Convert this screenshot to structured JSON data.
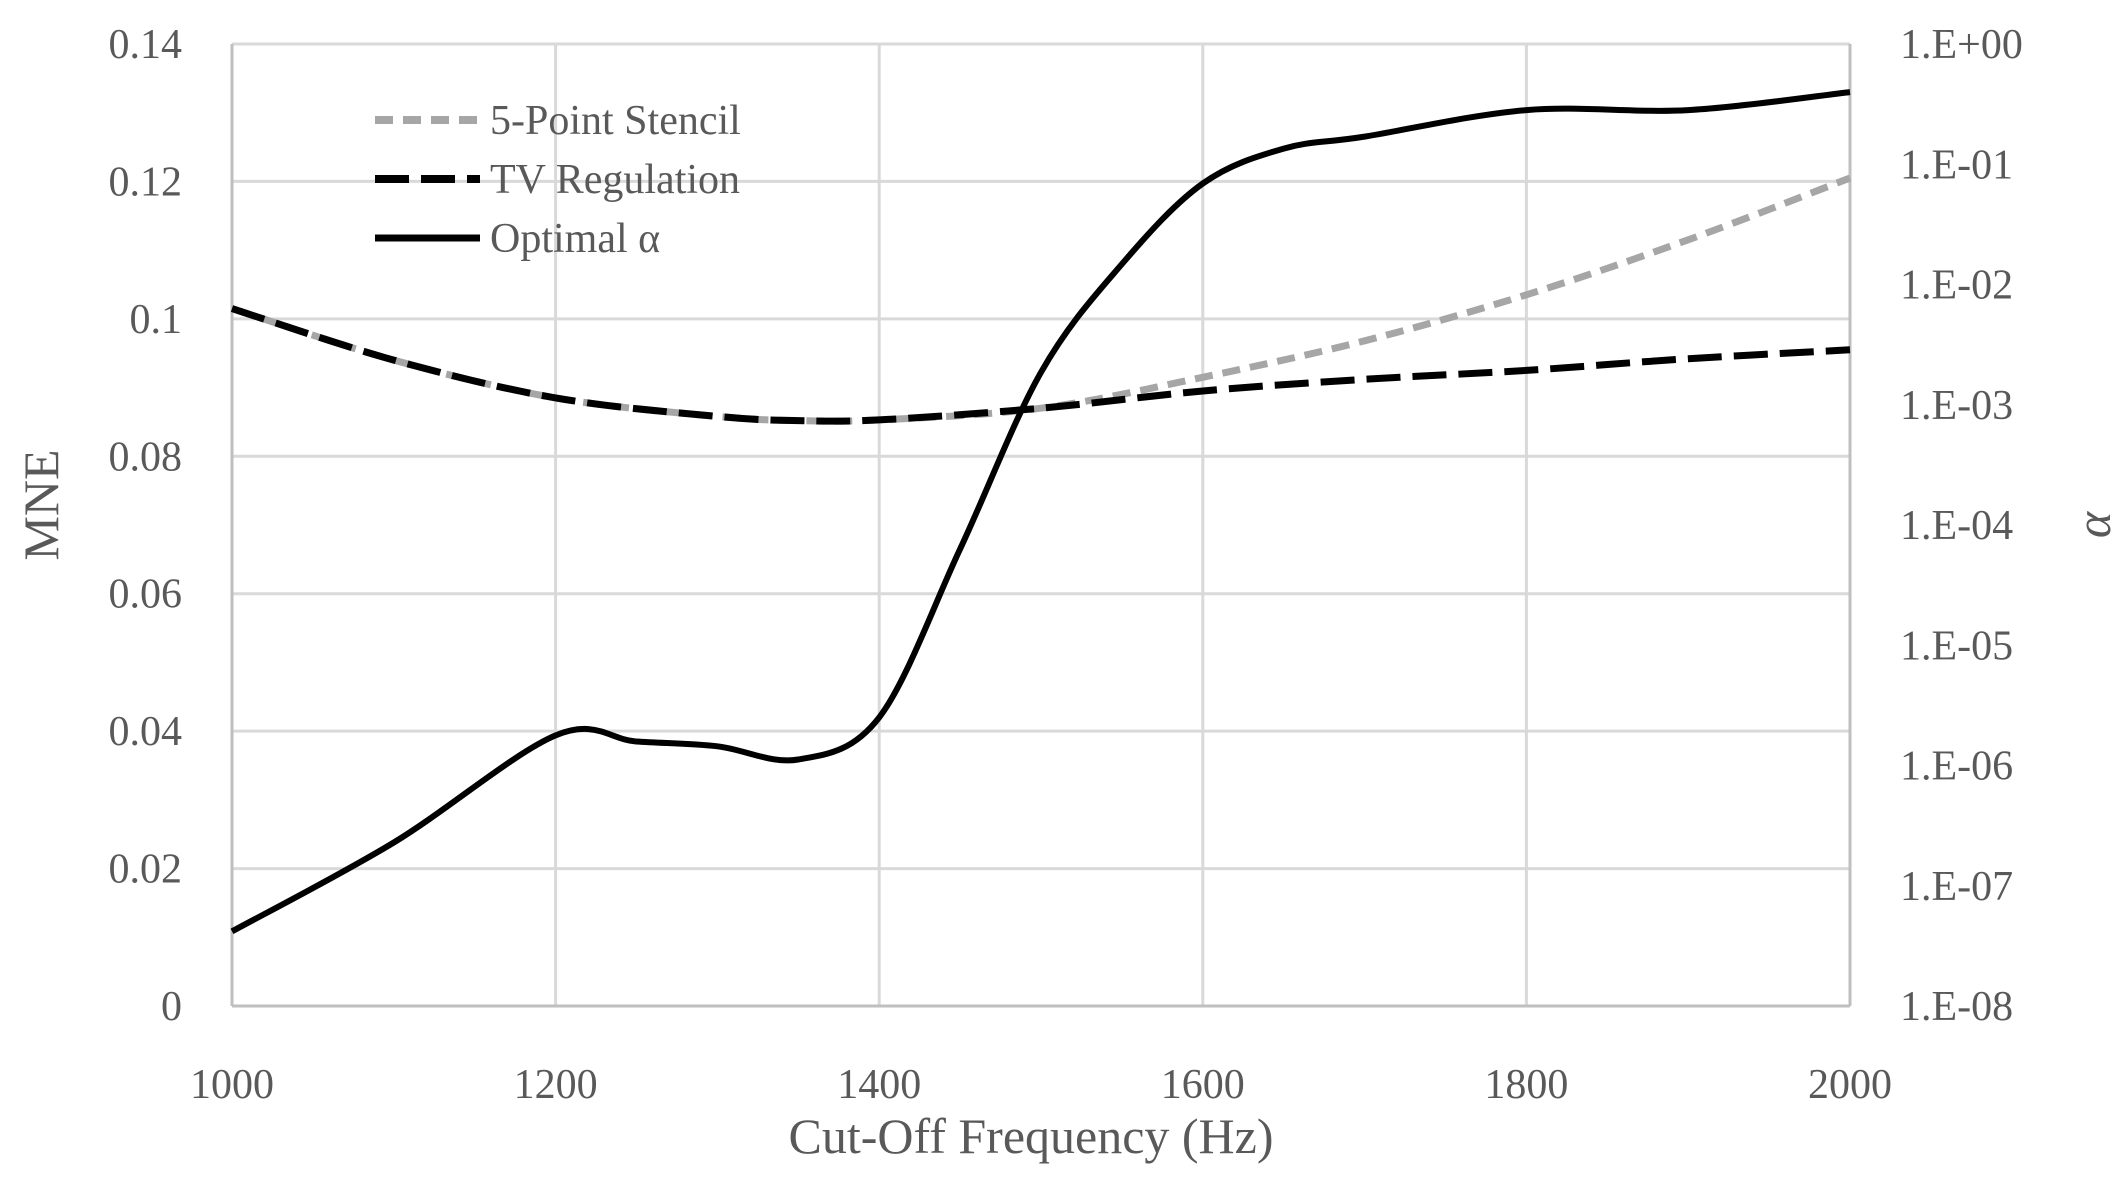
{
  "chart_data": {
    "type": "line",
    "xlabel": "Cut-Off Frequency (Hz)",
    "ylabel": "MNE",
    "y2label": "α",
    "xlim": [
      1000,
      2000
    ],
    "ylim": [
      0,
      0.14
    ],
    "y2lim_log10": [
      -8,
      0
    ],
    "grid": true,
    "legend_position": "top-left",
    "x_ticks": [
      "1000",
      "1200",
      "1400",
      "1600",
      "1800",
      "2000"
    ],
    "x_tick_values": [
      1000,
      1200,
      1400,
      1600,
      1800,
      2000
    ],
    "y_ticks": [
      "0",
      "0.02",
      "0.04",
      "0.06",
      "0.08",
      "0.1",
      "0.12",
      "0.14"
    ],
    "y_tick_values": [
      0,
      0.02,
      0.04,
      0.06,
      0.08,
      0.1,
      0.12,
      0.14
    ],
    "y2_ticks": [
      "1.E-08",
      "1.E-07",
      "1.E-06",
      "1.E-05",
      "1.E-04",
      "1.E-03",
      "1.E-02",
      "1.E-01",
      "1.E+00"
    ],
    "y2_tick_exponents": [
      -8,
      -7,
      -6,
      -5,
      -4,
      -3,
      -2,
      -1,
      0
    ],
    "series": [
      {
        "name": "5-Point Stencil",
        "axis": "left",
        "color": "#a6a6a6",
        "dash": "dotted",
        "x": [
          1000,
          1100,
          1200,
          1300,
          1350,
          1400,
          1500,
          1600,
          1700,
          1800,
          1900,
          2000
        ],
        "y": [
          0.1015,
          0.094,
          0.0885,
          0.0858,
          0.0852,
          0.0853,
          0.087,
          0.0915,
          0.0968,
          0.1035,
          0.1115,
          0.1205
        ]
      },
      {
        "name": "TV Regulation",
        "axis": "left",
        "color": "#000000",
        "dash": "dashed",
        "x": [
          1000,
          1100,
          1200,
          1300,
          1350,
          1400,
          1500,
          1600,
          1700,
          1800,
          1900,
          2000
        ],
        "y": [
          0.1015,
          0.094,
          0.0885,
          0.0858,
          0.0852,
          0.0853,
          0.087,
          0.0895,
          0.0912,
          0.0925,
          0.0942,
          0.0955
        ]
      },
      {
        "name": "Optimal α",
        "axis": "right",
        "color": "#000000",
        "dash": "solid",
        "x": [
          1000,
          1100,
          1200,
          1250,
          1300,
          1350,
          1400,
          1450,
          1500,
          1550,
          1600,
          1650,
          1700,
          1800,
          1900,
          2000
        ],
        "y_log10": [
          -7.38,
          -6.64,
          -5.75,
          -5.8,
          -5.84,
          -5.95,
          -5.6,
          -4.2,
          -2.73,
          -1.83,
          -1.16,
          -0.87,
          -0.77,
          -0.55,
          -0.55,
          -0.4
        ]
      }
    ]
  }
}
